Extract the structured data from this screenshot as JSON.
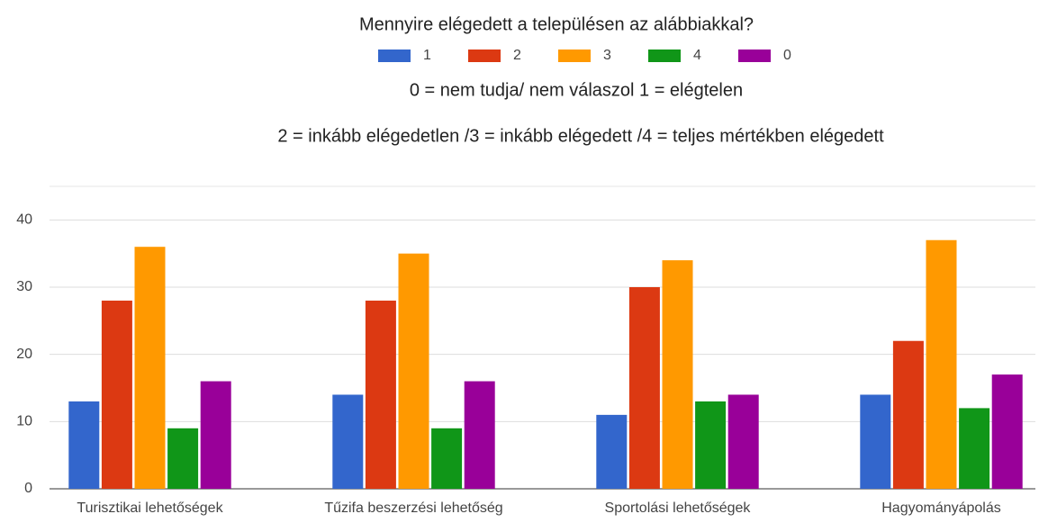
{
  "chart_data": {
    "type": "bar",
    "title": "Mennyire elégedett a településen az alábbiakkal?",
    "subtitle": [
      "0 = nem tudja/ nem válaszol 1 = elégtelen",
      "2 = inkább elégedetlen /3 = inkább elégedett /4 = teljes mértékben elégedett"
    ],
    "categories": [
      "Turisztikai lehetőségek",
      "Tűzifa beszerzési lehetőség",
      "Sportolási lehetőségek",
      "Hagyományápolás"
    ],
    "series": [
      {
        "name": "1",
        "color": "#3366cc",
        "values": [
          13,
          14,
          11,
          14
        ]
      },
      {
        "name": "2",
        "color": "#dc3912",
        "values": [
          28,
          28,
          30,
          22
        ]
      },
      {
        "name": "3",
        "color": "#ff9900",
        "values": [
          36,
          35,
          34,
          37
        ]
      },
      {
        "name": "4",
        "color": "#109618",
        "values": [
          9,
          9,
          13,
          12
        ]
      },
      {
        "name": "0",
        "color": "#990099",
        "values": [
          16,
          16,
          14,
          17
        ]
      }
    ],
    "ylim": [
      0,
      45
    ],
    "yticks": [
      0,
      10,
      20,
      30,
      40
    ],
    "grid": true,
    "legend": "top"
  }
}
